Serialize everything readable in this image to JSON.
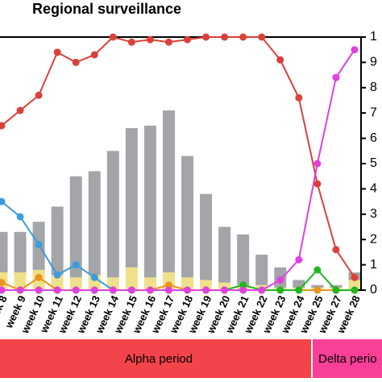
{
  "chart_data": {
    "type": "bar-line",
    "title": "Regional surveillance",
    "categories": [
      "week 8",
      "week 9",
      "week 10",
      "week 11",
      "week 12",
      "week 13",
      "week 14",
      "week 15",
      "week 16",
      "week 17",
      "week 18",
      "week 19",
      "week 20",
      "week 21",
      "week 22",
      "week 23",
      "week 24",
      "week 25",
      "week 27",
      "week 28"
    ],
    "ylim": [
      0,
      100
    ],
    "y2lim": [
      0,
      100
    ],
    "y2ticks": [
      0,
      {
        "value": 10,
        "label": "1"
      },
      {
        "value": 20,
        "label": "2"
      },
      {
        "value": 30,
        "label": "3"
      },
      {
        "value": 40,
        "label": "4"
      },
      {
        "value": 50,
        "label": "5"
      },
      {
        "value": 60,
        "label": "6"
      },
      {
        "value": 70,
        "label": "7"
      },
      {
        "value": 80,
        "label": "8"
      },
      {
        "value": 90,
        "label": "9"
      },
      {
        "value": 100,
        "label": "1"
      }
    ],
    "bars": [
      {
        "color": "#f0e08a",
        "values": [
          7,
          7,
          8,
          6,
          5,
          6,
          5,
          9,
          5,
          7,
          5,
          4,
          3,
          2,
          2,
          1,
          1,
          1,
          1,
          4
        ]
      },
      {
        "color": "#a3a5a8",
        "values": [
          16,
          16,
          19,
          27,
          40,
          41,
          50,
          55,
          60,
          64,
          48,
          34,
          22,
          20,
          12,
          8,
          3,
          1,
          1,
          3
        ]
      }
    ],
    "series": [
      {
        "color": "#d9413a",
        "axis": "y2",
        "values": [
          65,
          71,
          77,
          94,
          90,
          93,
          100,
          98,
          99,
          98,
          99,
          100,
          100,
          100,
          100,
          91,
          76,
          42,
          16,
          5
        ]
      },
      {
        "color": "#3d9be0",
        "axis": "y2",
        "values": [
          35,
          29,
          18,
          6,
          10,
          5,
          0,
          0,
          0,
          0,
          0,
          0,
          0,
          0,
          0,
          0,
          0,
          0,
          0,
          0
        ]
      },
      {
        "color": "#e8951f",
        "axis": "y2",
        "values": [
          3,
          0,
          5,
          0,
          0,
          0,
          0,
          0,
          0,
          2,
          0,
          0,
          0,
          0,
          0,
          0,
          0,
          0,
          0,
          0
        ]
      },
      {
        "color": "#21b521",
        "axis": "y2",
        "values": [
          0,
          0,
          0,
          0,
          0,
          0,
          0,
          0,
          0,
          0,
          0,
          0,
          0,
          2,
          0,
          0,
          0,
          8,
          0,
          0
        ]
      },
      {
        "color": "#e040e0",
        "axis": "y2",
        "values": [
          0,
          0,
          0,
          0,
          0,
          0,
          0,
          0,
          0,
          0,
          0,
          0,
          0,
          0,
          0,
          4,
          12,
          50,
          84,
          95
        ]
      }
    ],
    "periods": [
      {
        "label": "Alpha period",
        "color": "#f2444a"
      },
      {
        "label": "Delta perio",
        "color": "#fa3f98"
      }
    ]
  }
}
